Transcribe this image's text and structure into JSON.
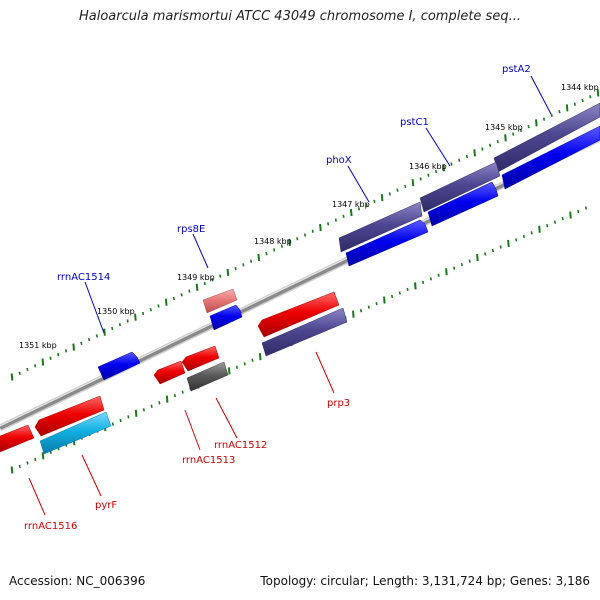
{
  "title": "Haloarcula marismortui ATCC 43049 chromosome I, complete seq...",
  "footer": {
    "accession": "Accession: NC_006396",
    "summary": "Topology: circular; Length: 3,131,724 bp; Genes: 3,186"
  },
  "scale_labels": [
    "1344 kbp",
    "1345 kbp",
    "1346 kbp",
    "1347 kbp",
    "1348 kbp",
    "1349 kbp",
    "1350 kbp",
    "1351 kbp"
  ],
  "gene_labels": {
    "forward": [
      "pstA2",
      "pstC1",
      "phoX",
      "rps8E",
      "rrnAC1514"
    ],
    "reverse": [
      "prp3",
      "rrnAC1512",
      "rrnAC1513",
      "pyrF",
      "rrnAC1516"
    ]
  },
  "colors": {
    "backbone": "#8a8a8a",
    "tick": "#1a7a1a",
    "forward_label": "#0000cc",
    "reverse_label": "#cc0000",
    "purple_gene": "#4d4791",
    "blue_gene": "#0000ee",
    "red_gene": "#ee0000",
    "pink_gene": "#e87878",
    "cyan_gene": "#10b0e0",
    "gray_gene": "#5a5a5a"
  }
}
